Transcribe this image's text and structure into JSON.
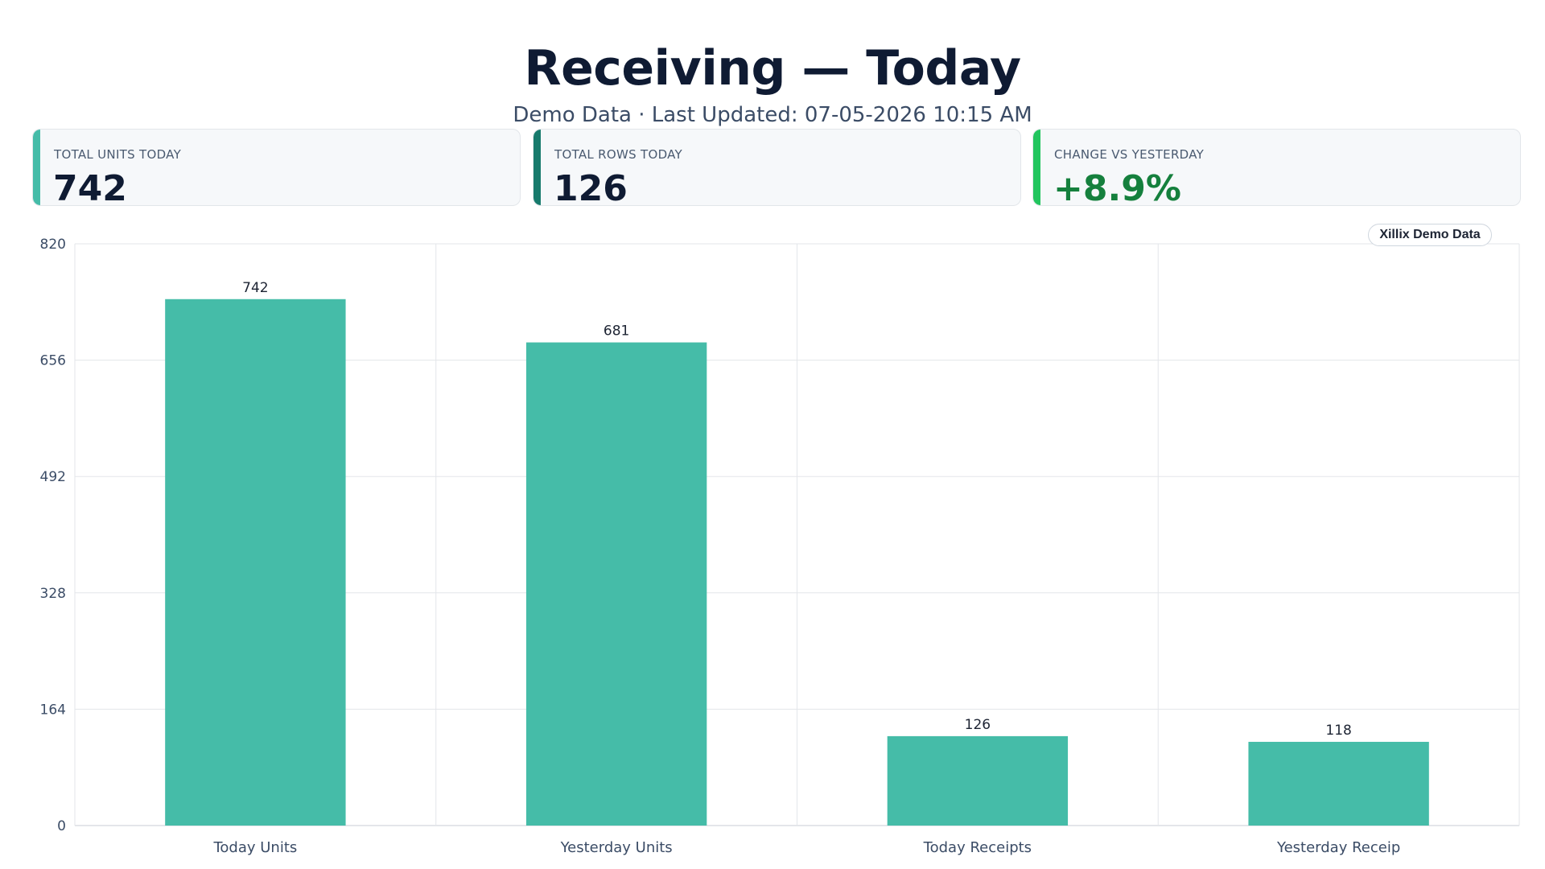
{
  "header": {
    "title": "Receiving — Today",
    "subtitle": "Demo Data · Last Updated: 07-05-2026 10:15 AM"
  },
  "kpis": [
    {
      "label": "TOTAL UNITS TODAY",
      "value": "742",
      "accent": "#45bca8",
      "value_color": "#0f1b33"
    },
    {
      "label": "TOTAL ROWS TODAY",
      "value": "126",
      "accent": "#177a6c",
      "value_color": "#0f1b33"
    },
    {
      "label": "CHANGE VS YESTERDAY",
      "value": "+8.9%",
      "accent": "#22c55e",
      "value_color": "#15803d"
    }
  ],
  "badge": {
    "text": "Xillix Demo Data"
  },
  "colors": {
    "bar": "#45bca8",
    "grid": "#e3e6ea",
    "axis": "#c9ced6"
  },
  "chart_data": {
    "type": "bar",
    "categories": [
      "Today Units",
      "Yesterday Units",
      "Today Receipts",
      "Yesterday Receip"
    ],
    "values": [
      742,
      681,
      126,
      118
    ],
    "data_labels": [
      "742",
      "681",
      "126",
      "118"
    ],
    "yticks": [
      0,
      164,
      328,
      492,
      656,
      820
    ],
    "ylim": [
      0,
      820
    ],
    "grid": true,
    "legend": "none"
  }
}
